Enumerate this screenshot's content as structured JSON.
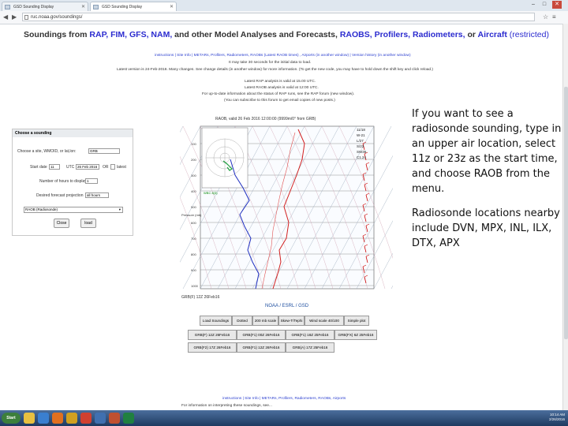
{
  "browser": {
    "tabs": [
      {
        "label": "GSD Sounding Display"
      },
      {
        "label": "GSD Sounding Display"
      }
    ],
    "url": "ruc.noaa.gov/soundings/",
    "win_min": "–",
    "win_max": "□",
    "win_close": "✕"
  },
  "header": {
    "title_prefix": "Soundings from ",
    "title_links": "RAP, FIM, GFS, NAM,",
    "title_mid": " and other Model Analyses and Forecasts, ",
    "title_links2": "RAOBS, Profilers, Radiometers,",
    "title_or": " or ",
    "title_aircraft": "Aircraft",
    "title_restricted": " (restricted)"
  },
  "notes": {
    "nav_line": "instructions | Site Info | METARs, Profilers, Radiometers, RAOBs (Latest RAOB times) , Airports (in another window) | Version history (in another window)",
    "note1": "It may take 30 seconds for the initial data to load.",
    "note2": "Latest version is 24-Feb-2016. Many changes. See change details (in another window) for more information. (To get the new code, you may have to hold down the shift key and click reload.)",
    "latest1": "Latest RAP analysis is valid at 15.00 UTC.",
    "latest2": "Latest RAOB analysis is valid at 12:00 UTC.",
    "latest3": "For up-to-date information about the status of RAP runs, see the RAP forum (new window).",
    "latest4": "(You can subscribe to this forum to get email copies of new posts.)"
  },
  "form": {
    "heading": "Choose a sounding",
    "site_label": "Choose a site, WMOID, or lat,lon:",
    "site_value": "GRB",
    "start_label": "Start date",
    "start_hour": "11",
    "utc_label": "UTC",
    "date_value": "26 Feb 2016",
    "or_label": "OR",
    "latest_label": "latest",
    "hours_label": "Number of hours to display",
    "hours_value": "1",
    "fcst_label": "Desired forecast projection",
    "fcst_value": "all hours",
    "model_value": "RAOB (Radiosonde)",
    "close_btn": "Close",
    "load_btn": "load"
  },
  "skewt": {
    "title": "RAOB, valid 26 Feb 2016 12:00:00 (9999m/0° from GRB)",
    "site_label": "GRB(F) 12Z 26Feb16",
    "brand": "NOAA / ESRL / GSD",
    "press_label": "Pressure (mb)",
    "dates": [
      "11/18",
      "W-21",
      "L/27",
      "S/23",
      "SW36",
      "C1.24"
    ]
  },
  "controls": {
    "row1": [
      "Load Soundings",
      "Dotted",
      "200 mb scale",
      "Skew-T/Tephi",
      "Wind scale 40/100",
      "Simple plot"
    ],
    "row2": [
      "GRB(F) 12Z 26Feb16",
      "GRB(F1) 00Z 26Feb16",
      "GRB(F1) 18Z 25Feb16",
      "GRB(FX) 6Z 25Feb16"
    ],
    "row3": [
      "GRB(F2) 17Z 26Feb16",
      "GRB(F1) 12Z 26Feb16",
      "GRB(A) 17Z 25Feb16"
    ]
  },
  "footer": {
    "nav_line": "instructions | Site Info | METARs, Profilers, Radiometers, RAOBs, Airports",
    "info_line": "For information on interpreting these soundings, see..."
  },
  "side_text": {
    "p1": "If you want to see a radiosonde sounding, type in an upper air location, select 11z or 23z as the start time, and choose RAOB from the menu.",
    "p2": "Radiosonde locations nearby include DVN, MPX, INL, ILX, DTX, APX"
  },
  "taskbar": {
    "start_label": "Start",
    "time": "10:14 AM",
    "date": "2/26/2016"
  },
  "colors": {
    "link_blue": "#2b2bcf",
    "temp_red": "#d22020",
    "dew_blue": "#2030c0",
    "wind_green": "#20a040"
  }
}
